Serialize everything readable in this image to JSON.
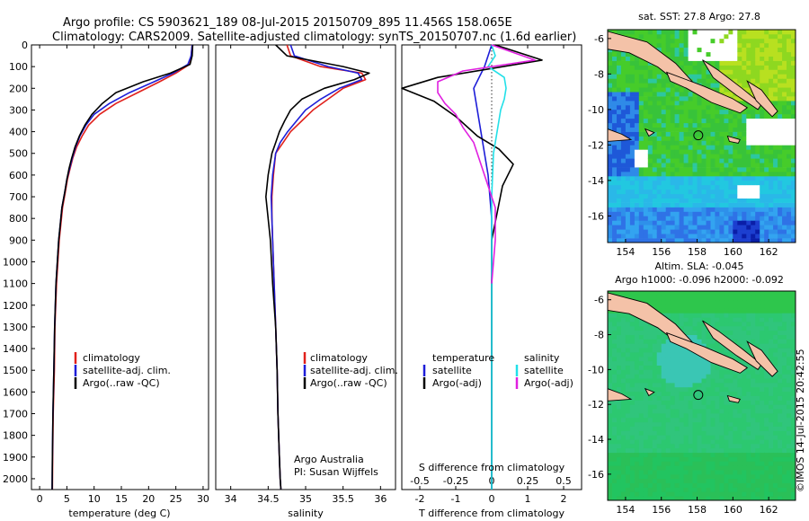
{
  "header": {
    "title_line1": "Argo profile: CS 5903621_189 08-Jul-2015 20150709_895 11.456S 158.065E",
    "title_line2": "Climatology: CARS2009. Satellite-adjusted climatology: synTS_20150707.nc (1.6d earlier)"
  },
  "colors": {
    "climatology": "#e0201b",
    "satellite": "#1d1dd8",
    "argo": "#000000",
    "salinity_sat": "#22e0e8",
    "salinity_argo": "#e020e0"
  },
  "chart_data": [
    {
      "type": "line",
      "id": "temperature",
      "xlabel": "temperature (deg C)",
      "ylim": [
        2050,
        0
      ],
      "xlim": [
        -1.5,
        31
      ],
      "xticks": [
        0,
        5,
        10,
        15,
        20,
        25,
        30
      ],
      "xtick_labels": [
        "0",
        "5",
        "10",
        "15",
        "20",
        "25",
        "30"
      ],
      "yticks": [
        0,
        100,
        200,
        300,
        400,
        500,
        600,
        700,
        800,
        900,
        1000,
        1100,
        1200,
        1300,
        1400,
        1500,
        1600,
        1700,
        1800,
        1900,
        2000
      ],
      "ytick_labels": [
        "0",
        "100",
        "200",
        "300",
        "400",
        "500",
        "600",
        "700",
        "800",
        "900",
        "1000",
        "1100",
        "1200",
        "1300",
        "1400",
        "1500",
        "1600",
        "1700",
        "1800",
        "1900",
        "2000"
      ],
      "legend": [
        "climatology",
        "satellite-adj. clim.",
        "Argo(..raw -QC)"
      ],
      "series": [
        {
          "name": "climatology",
          "x": [
            28.0,
            27.8,
            27.5,
            25,
            22,
            18,
            14,
            11,
            9,
            7.8,
            6.8,
            6.1,
            5.6,
            5.1,
            4.7,
            4.2,
            3.6,
            3.1,
            2.8,
            2.7,
            2.5,
            2.4,
            2.35
          ],
          "depth": [
            0,
            50,
            90,
            130,
            170,
            220,
            270,
            320,
            370,
            420,
            470,
            520,
            570,
            620,
            680,
            750,
            900,
            1100,
            1300,
            1500,
            1700,
            1900,
            2050
          ]
        },
        {
          "name": "satellite-adj. clim.",
          "x": [
            28.0,
            27.8,
            27.2,
            24.5,
            21,
            16.5,
            12.8,
            10,
            8.5,
            7.4,
            6.6,
            6.0,
            5.5,
            5.0,
            4.6,
            4.1,
            3.5,
            3.0,
            2.75,
            2.6,
            2.45,
            2.35,
            2.3
          ],
          "depth": [
            0,
            50,
            90,
            130,
            170,
            220,
            270,
            320,
            370,
            420,
            470,
            520,
            570,
            620,
            680,
            750,
            900,
            1100,
            1300,
            1500,
            1700,
            1900,
            2050
          ]
        },
        {
          "name": "Argo(..raw -QC)",
          "x": [
            28.1,
            28.0,
            27.6,
            24,
            19,
            14,
            11.5,
            9.6,
            8.3,
            7.3,
            6.5,
            5.9,
            5.4,
            5.0,
            4.6,
            4.1,
            3.5,
            3.0,
            2.75,
            2.6,
            2.45,
            2.35,
            2.3
          ],
          "depth": [
            0,
            50,
            90,
            130,
            170,
            220,
            270,
            320,
            370,
            420,
            470,
            520,
            570,
            620,
            680,
            750,
            900,
            1100,
            1300,
            1500,
            1700,
            1900,
            2050
          ]
        }
      ]
    },
    {
      "type": "line",
      "id": "salinity",
      "xlabel": "salinity",
      "ylim": [
        2050,
        0
      ],
      "xlim": [
        33.8,
        36.2
      ],
      "xticks": [
        34,
        34.5,
        35,
        35.5,
        36
      ],
      "xtick_labels": [
        "34",
        "34.5",
        "35",
        "35.5",
        "36"
      ],
      "legend": [
        "climatology",
        "satellite-adj. clim.",
        "Argo(..raw -QC)"
      ],
      "annotation": [
        "Argo Australia",
        "PI: Susan Wijffels"
      ],
      "series": [
        {
          "name": "climatology",
          "x": [
            34.75,
            34.8,
            35.2,
            35.75,
            35.8,
            35.5,
            35.3,
            35.1,
            34.95,
            34.8,
            34.7,
            34.6,
            34.57,
            34.55,
            34.55,
            34.56,
            34.58,
            34.6,
            34.62,
            34.63,
            34.65,
            34.66,
            34.67
          ],
          "depth": [
            0,
            50,
            100,
            130,
            160,
            200,
            250,
            300,
            350,
            400,
            450,
            500,
            600,
            700,
            800,
            900,
            1100,
            1300,
            1500,
            1700,
            1900,
            2000,
            2050
          ]
        },
        {
          "name": "satellite-adj. clim.",
          "x": [
            34.8,
            34.85,
            35.3,
            35.7,
            35.75,
            35.45,
            35.2,
            35.0,
            34.88,
            34.76,
            34.66,
            34.6,
            34.56,
            34.54,
            34.55,
            34.56,
            34.58,
            34.6,
            34.62,
            34.63,
            34.65,
            34.66,
            34.67
          ],
          "depth": [
            0,
            50,
            100,
            130,
            160,
            200,
            250,
            300,
            350,
            400,
            450,
            500,
            600,
            700,
            800,
            900,
            1100,
            1300,
            1500,
            1700,
            1900,
            2000,
            2050
          ]
        },
        {
          "name": "Argo(..raw -QC)",
          "x": [
            34.6,
            34.75,
            35.5,
            35.85,
            35.65,
            35.25,
            34.95,
            34.8,
            34.72,
            34.65,
            34.6,
            34.55,
            34.5,
            34.47,
            34.5,
            34.53,
            34.56,
            34.6,
            34.62,
            34.63,
            34.65,
            34.66,
            34.67
          ],
          "depth": [
            0,
            50,
            100,
            130,
            160,
            200,
            250,
            300,
            350,
            400,
            450,
            500,
            600,
            700,
            800,
            900,
            1100,
            1300,
            1500,
            1700,
            1900,
            2000,
            2050
          ]
        }
      ]
    },
    {
      "type": "line",
      "id": "difference",
      "xlabel": "T difference from climatology",
      "xlabel_top": "S difference from climatology",
      "ylim": [
        2050,
        0
      ],
      "xlim": [
        -2.5,
        2.5
      ],
      "xticks": [
        -2,
        -1,
        0,
        1,
        2
      ],
      "xtick_labels": [
        "-2",
        "-1",
        "0",
        "1",
        "2"
      ],
      "xticks_top": [
        -2,
        -1,
        0,
        1,
        2
      ],
      "xtick_labels_top": [
        "-0.5",
        "-0.25",
        "0",
        "0.25",
        "0.5"
      ],
      "legend": [
        "temperature",
        "satellite",
        "Argo(-adj)",
        "salinity",
        "satellite",
        "Argo(-adj)"
      ],
      "series": [
        {
          "name": "temperature satellite",
          "x": [
            0,
            -0.2,
            -0.5,
            -0.4,
            -0.3,
            -0.2,
            -0.1,
            -0.05,
            0,
            0,
            0,
            0
          ],
          "depth": [
            0,
            100,
            200,
            300,
            400,
            500,
            600,
            700,
            800,
            1000,
            1500,
            2050
          ]
        },
        {
          "name": "temperature Argo(-adj)",
          "x": [
            0.1,
            1.4,
            -1.5,
            -2.5,
            -1.6,
            -1.0,
            -0.4,
            0.2,
            0.6,
            0.3,
            0.0,
            0.0,
            0.0
          ],
          "depth": [
            0,
            70,
            150,
            200,
            260,
            330,
            420,
            480,
            550,
            650,
            900,
            1400,
            2050
          ]
        },
        {
          "name": "salinity satellite",
          "x": [
            0,
            0.1,
            -0.1,
            0.35,
            0.4,
            0.35,
            0.25,
            0.2,
            0.15,
            0.05,
            0,
            0,
            0
          ],
          "depth": [
            0,
            50,
            100,
            150,
            200,
            250,
            300,
            350,
            400,
            500,
            700,
            1200,
            2050
          ]
        },
        {
          "name": "salinity Argo(-adj)",
          "x": [
            0,
            1.2,
            -0.8,
            -1.5,
            -1.5,
            -1.3,
            -1.0,
            -0.8,
            -0.5,
            -0.2,
            0.1,
            0.1,
            0.0
          ],
          "depth": [
            0,
            70,
            120,
            170,
            220,
            270,
            320,
            380,
            450,
            600,
            750,
            900,
            1100
          ]
        }
      ]
    },
    {
      "type": "heatmap",
      "id": "sst_map",
      "title": "sat. SST: 27.8  Argo: 27.8",
      "xlim": [
        153,
        163.5
      ],
      "ylim": [
        -17.5,
        -5.5
      ],
      "xticks": [
        154,
        156,
        158,
        160,
        162
      ],
      "xtick_labels": [
        "154",
        "156",
        "158",
        "160",
        "162"
      ],
      "yticks": [
        -6,
        -8,
        -10,
        -12,
        -14,
        -16
      ],
      "ytick_labels": [
        "-6",
        "-8",
        "-10",
        "-12",
        "-14",
        "-16"
      ],
      "marker": {
        "lon": 158.065,
        "lat": -11.456
      }
    },
    {
      "type": "heatmap",
      "id": "sla_map",
      "title_line1": "Altim. SLA: -0.045",
      "title_line2": "Argo h1000: -0.096  h2000: -0.092",
      "xlim": [
        153,
        163.5
      ],
      "ylim": [
        -17.5,
        -5.5
      ],
      "xticks": [
        154,
        156,
        158,
        160,
        162
      ],
      "xtick_labels": [
        "154",
        "156",
        "158",
        "160",
        "162"
      ],
      "yticks": [
        -6,
        -8,
        -10,
        -12,
        -14,
        -16
      ],
      "ytick_labels": [
        "-6",
        "-8",
        "-10",
        "-12",
        "-14",
        "-16"
      ],
      "marker": {
        "lon": 158.065,
        "lat": -11.456
      }
    }
  ],
  "credit": "©IMOS 14-Jul-2015 20:42:55"
}
